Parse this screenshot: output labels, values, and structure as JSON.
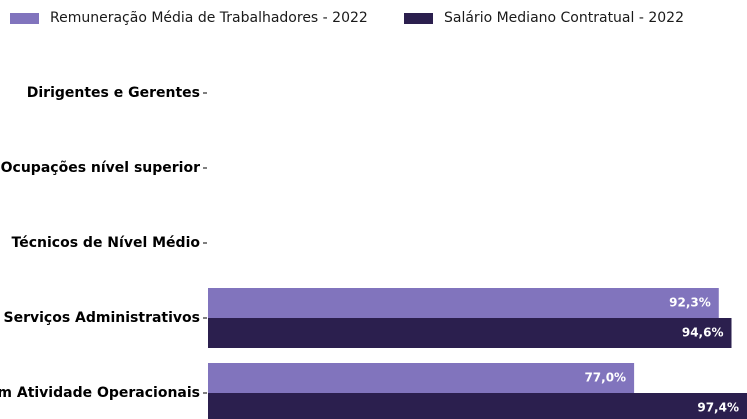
{
  "legend": {
    "items": [
      {
        "label": "Remuneração Média de Trabalhadores - 2022",
        "color": "#8174bd"
      },
      {
        "label": "Salário Mediano Contratual - 2022",
        "color": "#2b1f4e"
      }
    ]
  },
  "chart_data": {
    "type": "bar",
    "orientation": "horizontal",
    "categories": [
      "Dirigentes e Gerentes",
      "Ocupações nível superior",
      "Técnicos de Nível Médio",
      "Serviços Administrativos",
      "Trabalhadores em Atividade Operacionais"
    ],
    "series": [
      {
        "name": "Remuneração Média de Trabalhadores - 2022",
        "color": "#8174bd",
        "values": [
          null,
          null,
          null,
          92.3,
          77.0
        ],
        "labels": [
          "",
          "",
          "",
          "92,3%",
          "77,0%"
        ]
      },
      {
        "name": "Salário Mediano Contratual - 2022",
        "color": "#2b1f4e",
        "values": [
          null,
          null,
          null,
          94.6,
          97.4
        ],
        "labels": [
          "",
          "",
          "",
          "94,6%",
          "97,4%"
        ]
      }
    ],
    "xlim": [
      0,
      97.4
    ],
    "legend_position": "top",
    "grid": false
  }
}
